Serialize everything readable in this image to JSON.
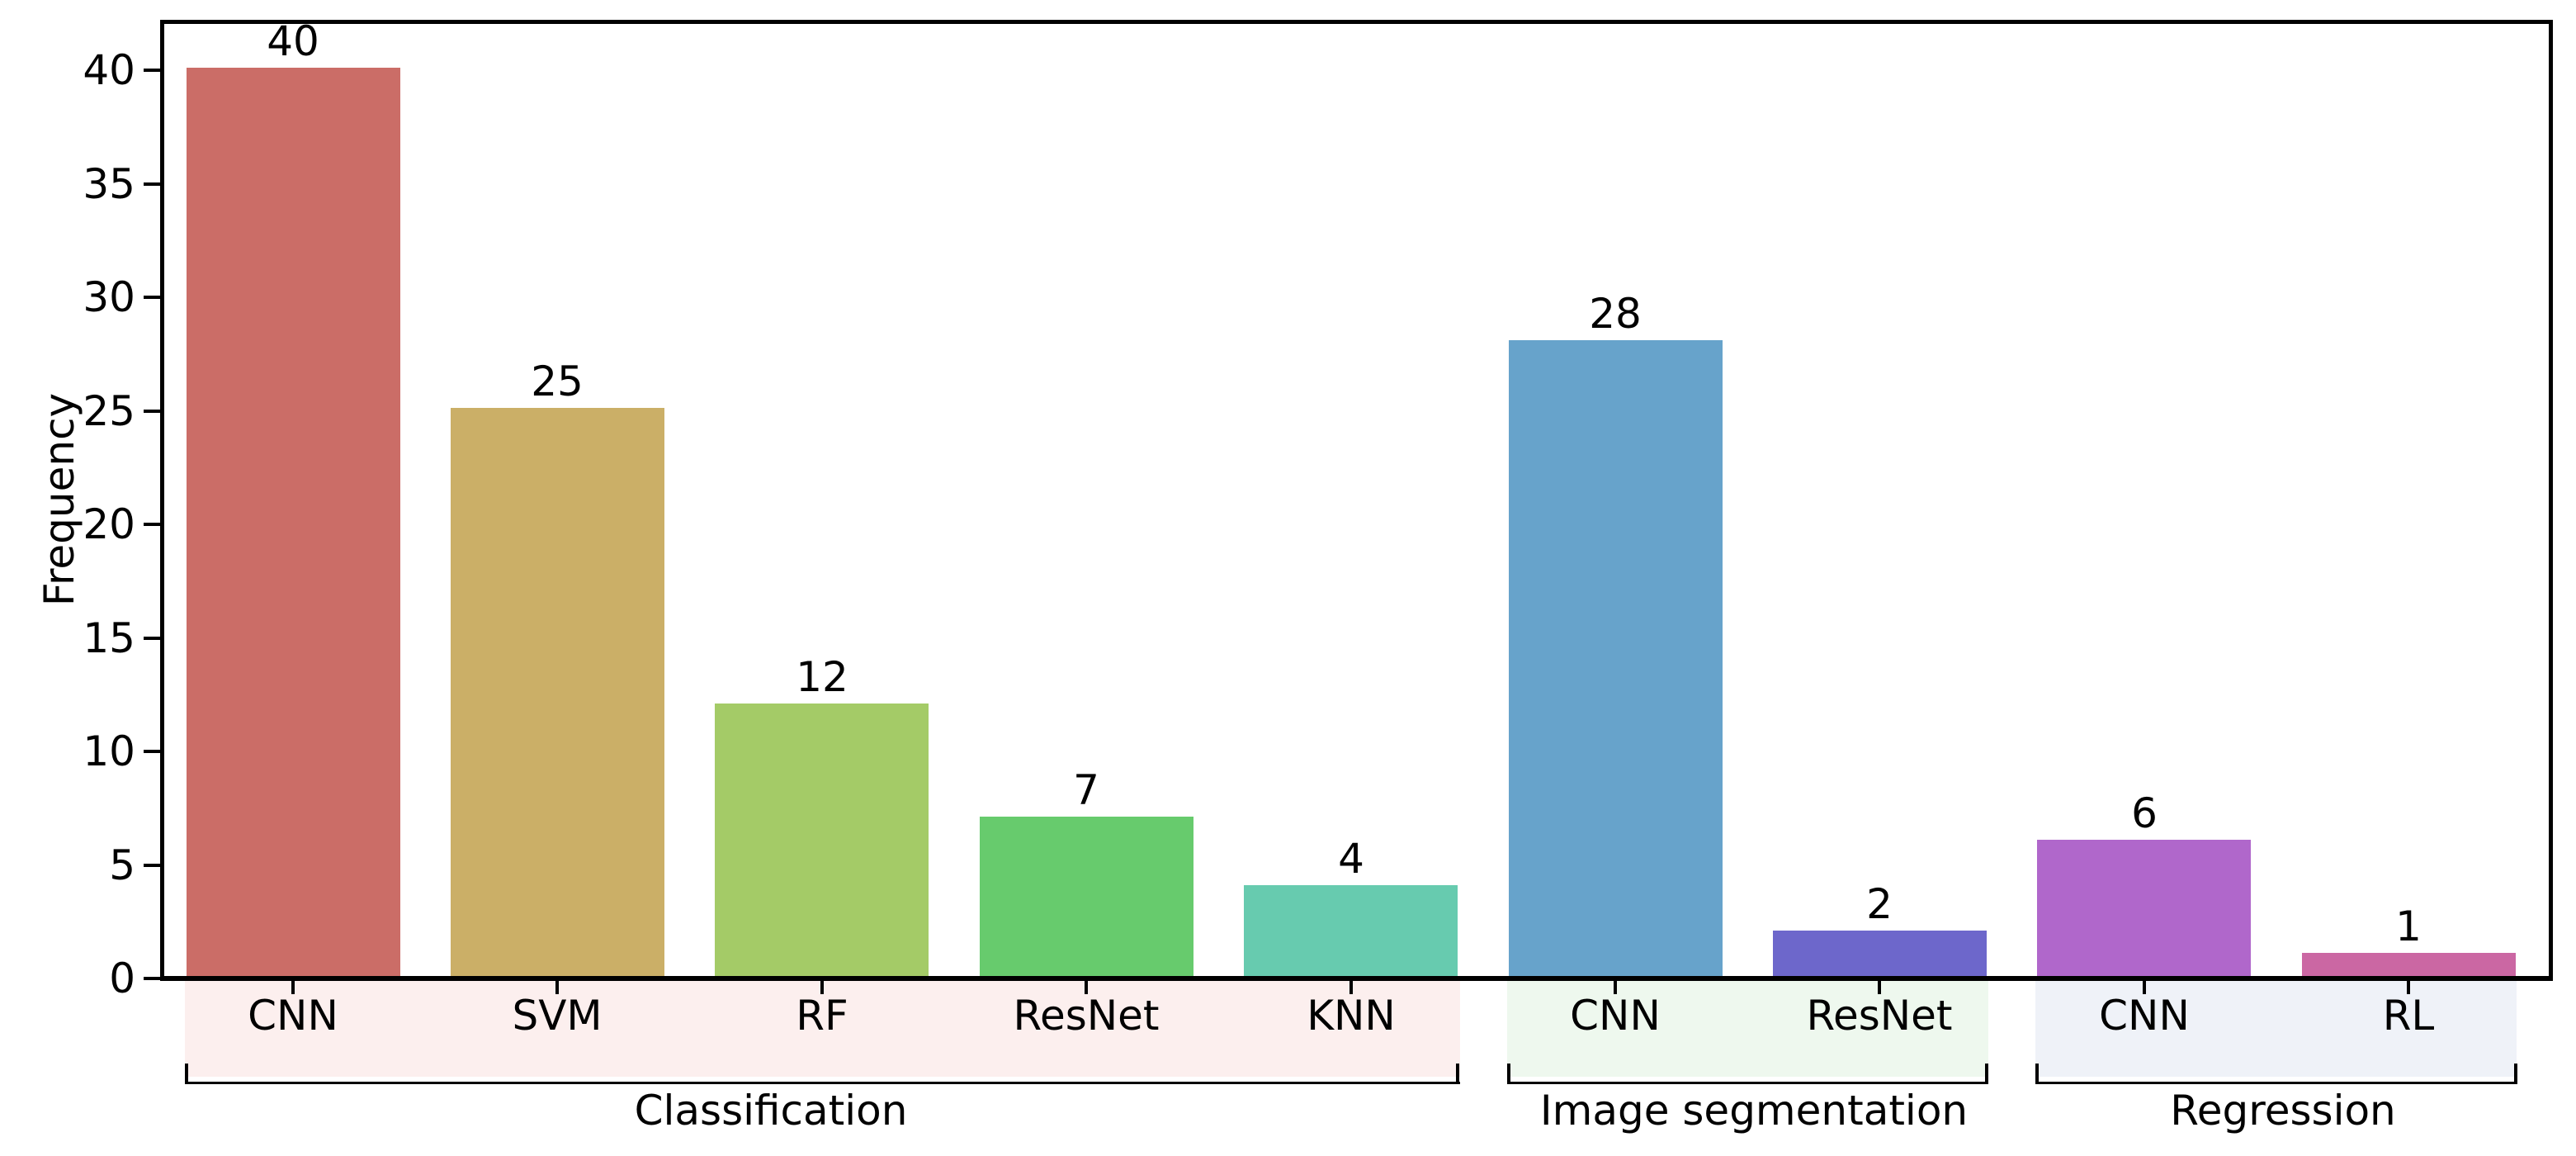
{
  "figure": {
    "background": "#ffffff",
    "axis_color": "#000000",
    "text_color": "#000000"
  },
  "chart_data": {
    "type": "bar",
    "title": "",
    "xlabel": "",
    "ylabel": "Frequency",
    "ylim": [
      0,
      42
    ],
    "grid": false,
    "legend": null,
    "yticks": [
      "0",
      "5",
      "10",
      "15",
      "20",
      "25",
      "30",
      "35",
      "40"
    ],
    "ytick_values": [
      0,
      5,
      10,
      15,
      20,
      25,
      30,
      35,
      40
    ],
    "categories": [
      "CNN",
      "SVM",
      "RF",
      "ResNet",
      "KNN",
      "CNN",
      "ResNet",
      "CNN",
      "RL"
    ],
    "values": [
      40,
      25,
      12,
      7,
      4,
      28,
      2,
      6,
      1
    ],
    "value_labels": [
      "40",
      "25",
      "12",
      "7",
      "4",
      "28",
      "2",
      "6",
      "1"
    ],
    "bar_colors": [
      "#cb6d67",
      "#cbaf67",
      "#a4cb67",
      "#67cb6d",
      "#67cbaf",
      "#67a3cb",
      "#6d67cb",
      "#b067cb",
      "#cb67a3"
    ],
    "groups": [
      {
        "label": "Classification",
        "categories": [
          "CNN",
          "SVM",
          "RF",
          "ResNet",
          "KNN"
        ],
        "values": [
          40,
          25,
          12,
          7,
          4
        ],
        "band_color": "#fcefee"
      },
      {
        "label": "Image segmentation",
        "categories": [
          "CNN",
          "ResNet"
        ],
        "values": [
          28,
          2
        ],
        "band_color": "#eef8ee"
      },
      {
        "label": "Regression",
        "categories": [
          "CNN",
          "RL"
        ],
        "values": [
          6,
          1
        ],
        "band_color": "#eff2f8"
      }
    ]
  }
}
